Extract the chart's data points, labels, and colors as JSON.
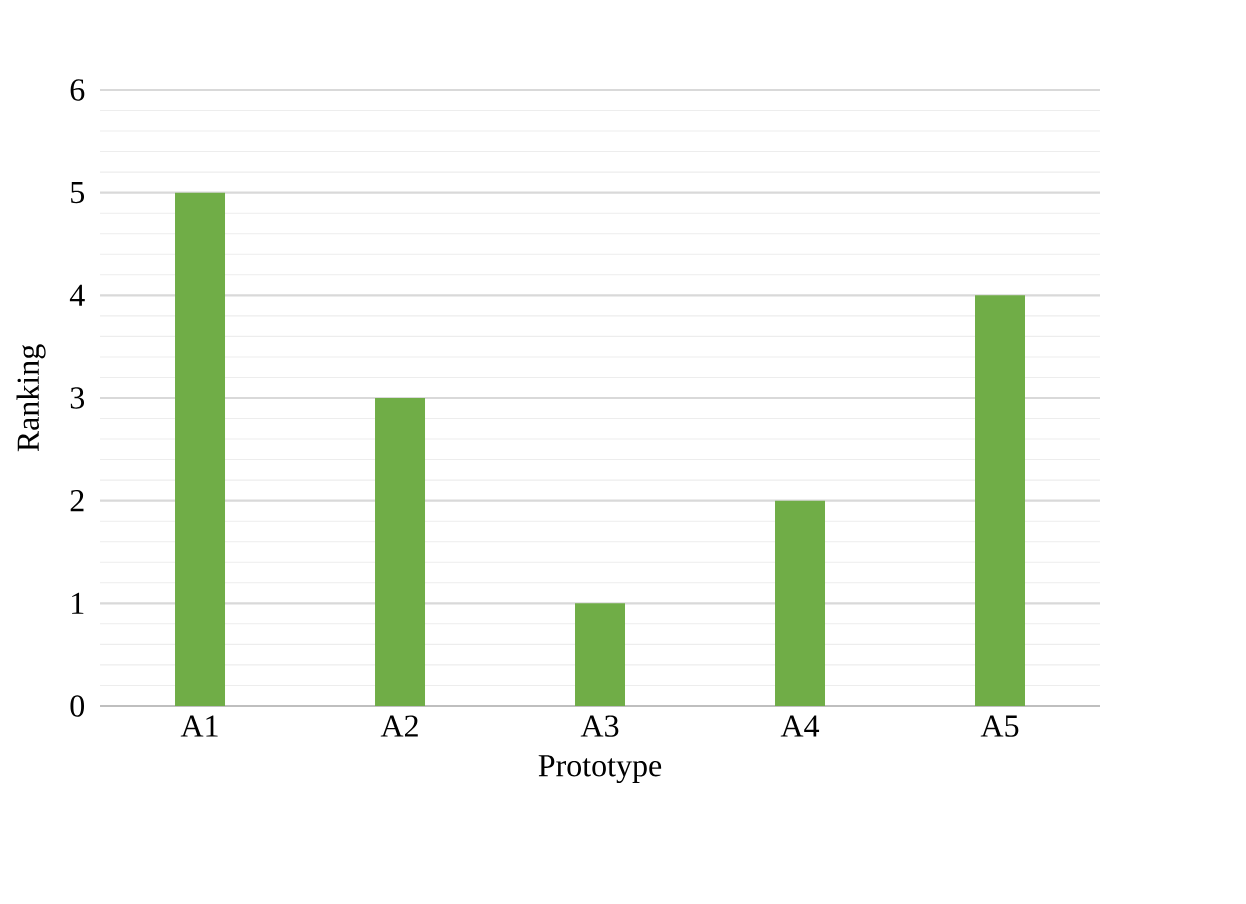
{
  "chart_data": {
    "type": "bar",
    "xlabel": "Prototype",
    "ylabel": "Ranking",
    "categories": [
      "A1",
      "A2",
      "A3",
      "A4",
      "A5"
    ],
    "values": [
      5,
      3,
      1,
      2,
      4
    ],
    "color": "#70ad47",
    "ylim": [
      0,
      6
    ],
    "yticks": [
      0,
      1,
      2,
      3,
      4,
      5,
      6
    ],
    "grid": "y"
  }
}
